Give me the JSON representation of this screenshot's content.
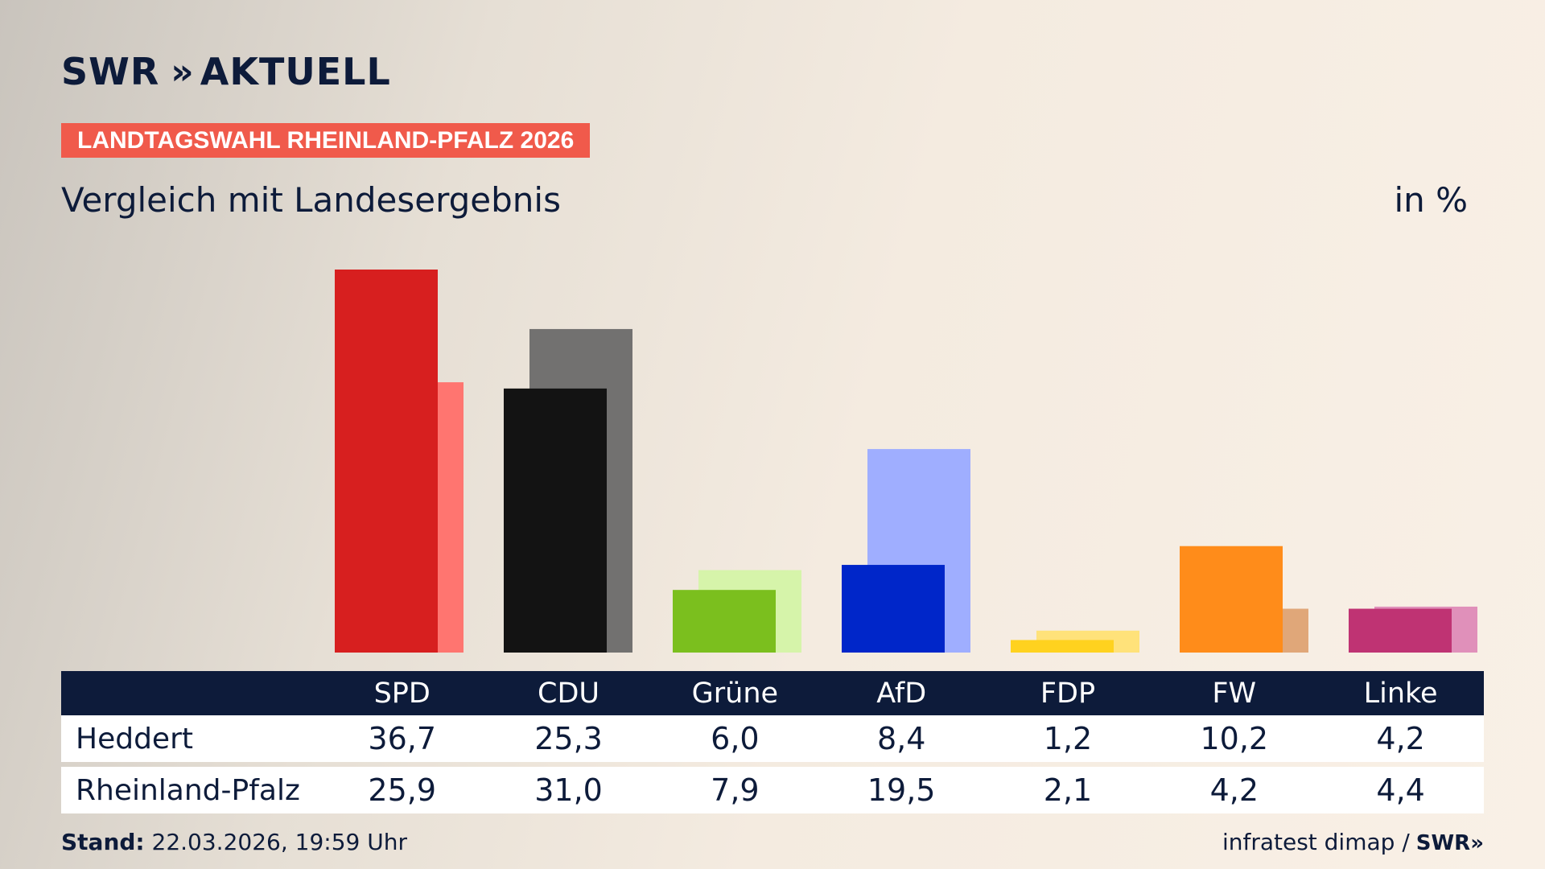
{
  "header": {
    "brand_left": "SWR",
    "brand_chevrons": "»",
    "brand_right": "AKTUELL",
    "election_badge": "LANDTAGSWAHL RHEINLAND-PFALZ 2026",
    "subtitle": "Vergleich mit Landesergebnis",
    "unit": "in %"
  },
  "colors": {
    "SPD": [
      "#d71f1f",
      "#ff7570"
    ],
    "CDU": [
      "#131313",
      "#727170"
    ],
    "Grüne": [
      "#7bbf1e",
      "#d6f4aa"
    ],
    "AfD": [
      "#0026c9",
      "#9faeff"
    ],
    "FDP": [
      "#ffd21f",
      "#ffe27a"
    ],
    "FW": [
      "#ff8c1a",
      "#e0a779"
    ],
    "Linke": [
      "#bf3373",
      "#e090ba"
    ]
  },
  "chart_data": {
    "type": "bar",
    "categories": [
      "SPD",
      "CDU",
      "Grüne",
      "AfD",
      "FDP",
      "FW",
      "Linke"
    ],
    "series": [
      {
        "name": "Heddert",
        "values": [
          36.7,
          25.3,
          6.0,
          8.4,
          1.2,
          10.2,
          4.2
        ]
      },
      {
        "name": "Rheinland-Pfalz",
        "values": [
          25.9,
          31.0,
          7.9,
          19.5,
          2.1,
          4.2,
          4.4
        ]
      }
    ],
    "ylim": [
      0,
      36.7
    ],
    "grid": false
  },
  "table": {
    "headers": [
      "SPD",
      "CDU",
      "Grüne",
      "AfD",
      "FDP",
      "FW",
      "Linke"
    ],
    "rows": [
      {
        "label": "Heddert",
        "values": [
          "36,7",
          "25,3",
          "6,0",
          "8,4",
          "1,2",
          "10,2",
          "4,2"
        ]
      },
      {
        "label": "Rheinland-Pfalz",
        "values": [
          "25,9",
          "31,0",
          "7,9",
          "19,5",
          "2,1",
          "4,2",
          "4,4"
        ]
      }
    ]
  },
  "footer": {
    "stand_label": "Stand:",
    "stand_value": " 22.03.2026, 19:59 Uhr",
    "source": "infratest dimap /",
    "source_logo": "SWR»"
  }
}
